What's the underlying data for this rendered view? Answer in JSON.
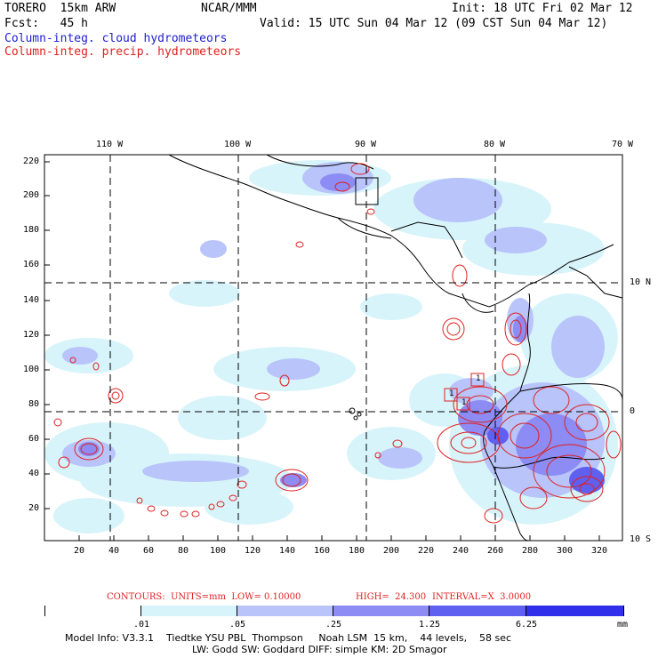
{
  "header": {
    "model": "TORERO  15km ARW",
    "org": "NCAR/MMM",
    "init": "Init: 18 UTC Fri 02 Mar 12",
    "fcst": "Fcst:   45 h",
    "valid": "Valid: 15 UTC Sun 04 Mar 12 (09 CST Sun 04 Mar 12)",
    "legend_cloud": "Column-integ. cloud hydrometeors",
    "legend_precip": "Column-integ. precip. hydrometeors"
  },
  "axes": {
    "top_lon_labels": [
      "110 W",
      "100 W",
      "90 W",
      "80 W",
      "70 W"
    ],
    "right_lat_labels": [
      "10 N",
      "0",
      "10 S"
    ],
    "y_ticks": [
      "220",
      "200",
      "180",
      "160",
      "140",
      "120",
      "100",
      "80",
      "60",
      "40",
      "20"
    ],
    "x_ticks": [
      "20",
      "40",
      "60",
      "80",
      "100",
      "120",
      "140",
      "160",
      "180",
      "200",
      "220",
      "240",
      "260",
      "280",
      "300",
      "320"
    ]
  },
  "contour_labels": [
    "1",
    "1",
    "1"
  ],
  "contour_info": {
    "contours": "CONTOURS:  UNITS=mm  LOW= 0.10000",
    "high": "HIGH=  24.300",
    "interval": "INTERVAL=X  3.0000"
  },
  "colorbar": {
    "unit": "mm",
    "labels": [
      ".01",
      ".05",
      ".25",
      "1.25",
      "6.25"
    ],
    "colors": [
      "#ffffff",
      "#d8f4fb",
      "#b8c4fa",
      "#8c8cf4",
      "#5f5ff0",
      "#3030ea",
      "#1818e8"
    ]
  },
  "footer": {
    "line1": "Model Info: V3.3.1    Tiedtke YSU PBL  Thompson     Noah LSM  15 km,    44 levels,    58 sec",
    "line2": "LW: Godd SW: Goddard DIFF: simple KM: 2D Smagor"
  }
}
